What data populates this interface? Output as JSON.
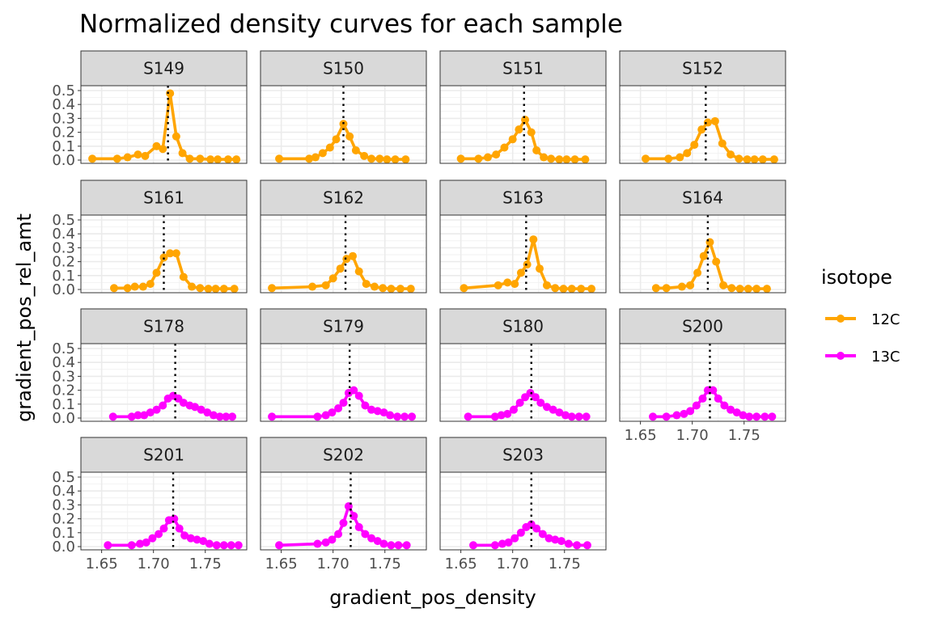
{
  "chart_data": {
    "type": "line",
    "title": "Normalized density curves for each sample",
    "xlabel": "gradient_pos_density",
    "ylabel": "gradient_pos_rel_amt",
    "xlim": [
      1.63,
      1.79
    ],
    "ylim": [
      0,
      0.5
    ],
    "x_ticks": [
      1.65,
      1.7,
      1.75
    ],
    "x_tick_labels": [
      "1.65",
      "1.70",
      "1.75"
    ],
    "y_ticks": [
      0.0,
      0.1,
      0.2,
      0.3,
      0.4,
      0.5
    ],
    "y_tick_labels": [
      "0.0",
      "0.1",
      "0.2",
      "0.3",
      "0.4",
      "0.5"
    ],
    "grid": true,
    "legend": {
      "title": "isotope",
      "position": "right",
      "entries": [
        {
          "label": "12C",
          "color": "#FFA500"
        },
        {
          "label": "13C",
          "color": "#FF00FF"
        }
      ]
    },
    "panels": [
      {
        "name": "S149",
        "isotope": "12C",
        "vline": 1.714,
        "x": [
          1.641,
          1.665,
          1.675,
          1.685,
          1.692,
          1.703,
          1.709,
          1.716,
          1.722,
          1.728,
          1.735,
          1.745,
          1.755,
          1.762,
          1.772,
          1.78
        ],
        "y": [
          0.01,
          0.01,
          0.02,
          0.04,
          0.03,
          0.1,
          0.08,
          0.48,
          0.17,
          0.05,
          0.01,
          0.01,
          0.005,
          0.005,
          0.005,
          0.005
        ]
      },
      {
        "name": "S150",
        "isotope": "12C",
        "vline": 1.71,
        "x": [
          1.648,
          1.677,
          1.683,
          1.69,
          1.697,
          1.703,
          1.71,
          1.716,
          1.722,
          1.73,
          1.737,
          1.745,
          1.752,
          1.76,
          1.77
        ],
        "y": [
          0.01,
          0.01,
          0.02,
          0.05,
          0.09,
          0.15,
          0.26,
          0.17,
          0.07,
          0.03,
          0.01,
          0.01,
          0.005,
          0.005,
          0.005
        ]
      },
      {
        "name": "S151",
        "isotope": "12C",
        "vline": 1.711,
        "x": [
          1.65,
          1.667,
          1.676,
          1.684,
          1.692,
          1.7,
          1.706,
          1.712,
          1.718,
          1.723,
          1.73,
          1.737,
          1.745,
          1.752,
          1.76,
          1.77
        ],
        "y": [
          0.01,
          0.01,
          0.02,
          0.04,
          0.09,
          0.15,
          0.22,
          0.29,
          0.2,
          0.07,
          0.02,
          0.01,
          0.005,
          0.005,
          0.005,
          0.005
        ]
      },
      {
        "name": "S152",
        "isotope": "12C",
        "vline": 1.713,
        "x": [
          1.655,
          1.677,
          1.688,
          1.695,
          1.702,
          1.709,
          1.715,
          1.722,
          1.729,
          1.737,
          1.745,
          1.753,
          1.76,
          1.768,
          1.779
        ],
        "y": [
          0.01,
          0.01,
          0.02,
          0.05,
          0.11,
          0.22,
          0.27,
          0.28,
          0.12,
          0.04,
          0.01,
          0.005,
          0.005,
          0.005,
          0.005
        ]
      },
      {
        "name": "S161",
        "isotope": "12C",
        "vline": 1.71,
        "x": [
          1.662,
          1.675,
          1.682,
          1.69,
          1.697,
          1.703,
          1.71,
          1.716,
          1.722,
          1.729,
          1.737,
          1.745,
          1.753,
          1.76,
          1.768,
          1.778
        ],
        "y": [
          0.01,
          0.01,
          0.02,
          0.02,
          0.04,
          0.12,
          0.23,
          0.26,
          0.26,
          0.09,
          0.02,
          0.01,
          0.005,
          0.005,
          0.005,
          0.005
        ]
      },
      {
        "name": "S162",
        "isotope": "12C",
        "vline": 1.712,
        "x": [
          1.641,
          1.68,
          1.693,
          1.7,
          1.707,
          1.713,
          1.719,
          1.725,
          1.732,
          1.74,
          1.748,
          1.756,
          1.765,
          1.775
        ],
        "y": [
          0.01,
          0.02,
          0.03,
          0.08,
          0.15,
          0.22,
          0.24,
          0.13,
          0.04,
          0.02,
          0.01,
          0.005,
          0.005,
          0.005
        ]
      },
      {
        "name": "S163",
        "isotope": "12C",
        "vline": 1.713,
        "x": [
          1.653,
          1.686,
          1.695,
          1.702,
          1.708,
          1.714,
          1.72,
          1.726,
          1.733,
          1.741,
          1.749,
          1.757,
          1.766,
          1.776
        ],
        "y": [
          0.01,
          0.03,
          0.05,
          0.04,
          0.12,
          0.18,
          0.36,
          0.15,
          0.03,
          0.01,
          0.005,
          0.005,
          0.005,
          0.005
        ]
      },
      {
        "name": "S164",
        "isotope": "12C",
        "vline": 1.715,
        "x": [
          1.665,
          1.675,
          1.69,
          1.698,
          1.705,
          1.711,
          1.717,
          1.723,
          1.73,
          1.738,
          1.746,
          1.754,
          1.762,
          1.772
        ],
        "y": [
          0.01,
          0.01,
          0.02,
          0.03,
          0.12,
          0.24,
          0.34,
          0.2,
          0.03,
          0.01,
          0.005,
          0.005,
          0.005,
          0.005
        ]
      },
      {
        "name": "S178",
        "isotope": "13C",
        "vline": 1.721,
        "x": [
          1.661,
          1.679,
          1.685,
          1.691,
          1.697,
          1.703,
          1.709,
          1.714,
          1.719,
          1.724,
          1.729,
          1.735,
          1.74,
          1.746,
          1.752,
          1.758,
          1.764,
          1.77,
          1.776
        ],
        "y": [
          0.01,
          0.01,
          0.02,
          0.02,
          0.04,
          0.06,
          0.09,
          0.14,
          0.16,
          0.14,
          0.11,
          0.09,
          0.08,
          0.06,
          0.04,
          0.02,
          0.01,
          0.01,
          0.01
        ]
      },
      {
        "name": "S179",
        "isotope": "13C",
        "vline": 1.716,
        "x": [
          1.641,
          1.685,
          1.693,
          1.699,
          1.705,
          1.71,
          1.715,
          1.72,
          1.725,
          1.731,
          1.737,
          1.743,
          1.749,
          1.755,
          1.762,
          1.769,
          1.776
        ],
        "y": [
          0.01,
          0.01,
          0.02,
          0.04,
          0.07,
          0.11,
          0.18,
          0.2,
          0.16,
          0.09,
          0.06,
          0.05,
          0.04,
          0.02,
          0.01,
          0.01,
          0.01
        ]
      },
      {
        "name": "S180",
        "isotope": "13C",
        "vline": 1.718,
        "x": [
          1.657,
          1.683,
          1.689,
          1.695,
          1.701,
          1.707,
          1.712,
          1.717,
          1.722,
          1.727,
          1.733,
          1.739,
          1.745,
          1.751,
          1.757,
          1.764,
          1.771
        ],
        "y": [
          0.01,
          0.01,
          0.02,
          0.03,
          0.06,
          0.11,
          0.15,
          0.18,
          0.15,
          0.11,
          0.08,
          0.06,
          0.04,
          0.02,
          0.01,
          0.01,
          0.01
        ]
      },
      {
        "name": "S200",
        "isotope": "13C",
        "vline": 1.717,
        "x": [
          1.662,
          1.675,
          1.685,
          1.692,
          1.698,
          1.704,
          1.71,
          1.715,
          1.72,
          1.725,
          1.731,
          1.737,
          1.743,
          1.749,
          1.755,
          1.762,
          1.77,
          1.777
        ],
        "y": [
          0.01,
          0.01,
          0.02,
          0.03,
          0.05,
          0.09,
          0.14,
          0.2,
          0.2,
          0.14,
          0.09,
          0.06,
          0.04,
          0.02,
          0.01,
          0.01,
          0.01,
          0.01
        ]
      },
      {
        "name": "S201",
        "isotope": "13C",
        "vline": 1.719,
        "x": [
          1.656,
          1.679,
          1.687,
          1.693,
          1.699,
          1.705,
          1.71,
          1.715,
          1.72,
          1.725,
          1.73,
          1.736,
          1.742,
          1.748,
          1.754,
          1.761,
          1.768,
          1.775,
          1.782
        ],
        "y": [
          0.01,
          0.01,
          0.02,
          0.03,
          0.06,
          0.09,
          0.13,
          0.19,
          0.2,
          0.13,
          0.08,
          0.06,
          0.05,
          0.04,
          0.02,
          0.01,
          0.01,
          0.01,
          0.01
        ]
      },
      {
        "name": "S202",
        "isotope": "13C",
        "vline": 1.717,
        "x": [
          1.648,
          1.685,
          1.693,
          1.699,
          1.705,
          1.71,
          1.715,
          1.72,
          1.725,
          1.731,
          1.737,
          1.743,
          1.749,
          1.756,
          1.763,
          1.771
        ],
        "y": [
          0.01,
          0.02,
          0.03,
          0.05,
          0.09,
          0.17,
          0.29,
          0.22,
          0.14,
          0.09,
          0.06,
          0.04,
          0.02,
          0.01,
          0.01,
          0.01
        ]
      },
      {
        "name": "S203",
        "isotope": "13C",
        "vline": 1.718,
        "x": [
          1.662,
          1.683,
          1.69,
          1.696,
          1.702,
          1.708,
          1.713,
          1.718,
          1.723,
          1.729,
          1.735,
          1.741,
          1.747,
          1.754,
          1.762,
          1.772
        ],
        "y": [
          0.01,
          0.01,
          0.02,
          0.03,
          0.06,
          0.1,
          0.14,
          0.16,
          0.13,
          0.09,
          0.06,
          0.05,
          0.04,
          0.02,
          0.01,
          0.01
        ]
      }
    ]
  }
}
